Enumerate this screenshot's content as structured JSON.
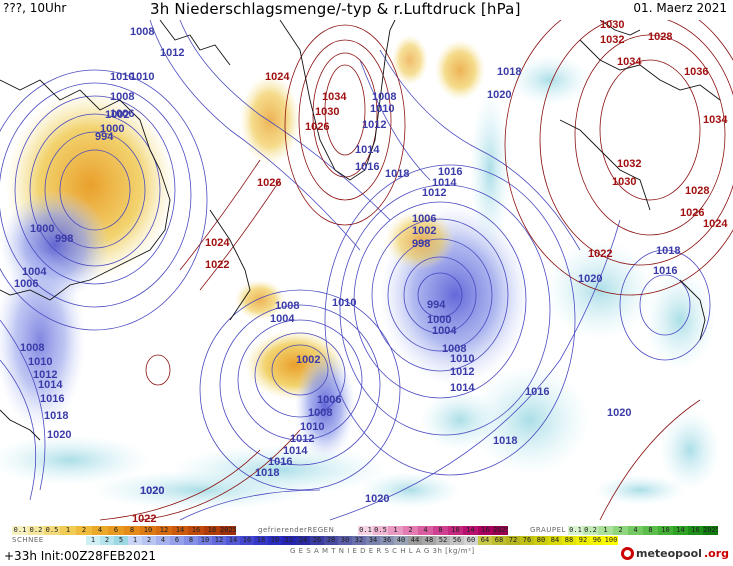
{
  "header": {
    "left_label": "???, 10Uhr",
    "title": "3h Niederschlagsmenge/-typ & r.Luftdruck [hPa]",
    "date": "01. Maerz 2021"
  },
  "map": {
    "pressure_labels": [
      {
        "v": "1008",
        "c": "lo"
      },
      {
        "v": "1010",
        "c": "lo"
      },
      {
        "v": "1012",
        "c": "lo"
      },
      {
        "v": "1010",
        "c": "lo"
      },
      {
        "v": "1008",
        "c": "lo"
      },
      {
        "v": "1006",
        "c": "lo"
      },
      {
        "v": "1002",
        "c": "lo"
      },
      {
        "v": "1000",
        "c": "lo"
      },
      {
        "v": "994",
        "c": "lo"
      },
      {
        "v": "998",
        "c": "lo"
      },
      {
        "v": "1000",
        "c": "lo"
      },
      {
        "v": "1004",
        "c": "lo"
      },
      {
        "v": "1006",
        "c": "lo"
      },
      {
        "v": "1024",
        "c": "hi"
      },
      {
        "v": "1034",
        "c": "hi"
      },
      {
        "v": "1030",
        "c": "hi"
      },
      {
        "v": "1026",
        "c": "hi"
      },
      {
        "v": "1008",
        "c": "lo"
      },
      {
        "v": "1010",
        "c": "lo"
      },
      {
        "v": "1012",
        "c": "lo"
      },
      {
        "v": "1014",
        "c": "lo"
      },
      {
        "v": "1016",
        "c": "lo"
      },
      {
        "v": "1018",
        "c": "lo"
      },
      {
        "v": "1020",
        "c": "lo"
      },
      {
        "v": "1018",
        "c": "lo"
      },
      {
        "v": "1026",
        "c": "hi"
      },
      {
        "v": "1024",
        "c": "hi"
      },
      {
        "v": "1022",
        "c": "hi"
      },
      {
        "v": "1030",
        "c": "hi"
      },
      {
        "v": "1032",
        "c": "hi"
      },
      {
        "v": "1028",
        "c": "hi"
      },
      {
        "v": "1034",
        "c": "hi"
      },
      {
        "v": "1036",
        "c": "hi"
      },
      {
        "v": "1034",
        "c": "hi"
      },
      {
        "v": "1032",
        "c": "hi"
      },
      {
        "v": "1030",
        "c": "hi"
      },
      {
        "v": "1028",
        "c": "hi"
      },
      {
        "v": "1026",
        "c": "hi"
      },
      {
        "v": "1024",
        "c": "hi"
      },
      {
        "v": "1016",
        "c": "lo"
      },
      {
        "v": "1014",
        "c": "lo"
      },
      {
        "v": "1012",
        "c": "lo"
      },
      {
        "v": "1006",
        "c": "lo"
      },
      {
        "v": "1002",
        "c": "lo"
      },
      {
        "v": "998",
        "c": "lo"
      },
      {
        "v": "994",
        "c": "lo"
      },
      {
        "v": "1000",
        "c": "lo"
      },
      {
        "v": "1004",
        "c": "lo"
      },
      {
        "v": "1008",
        "c": "lo"
      },
      {
        "v": "1010",
        "c": "lo"
      },
      {
        "v": "1012",
        "c": "lo"
      },
      {
        "v": "1014",
        "c": "lo"
      },
      {
        "v": "1016",
        "c": "lo"
      },
      {
        "v": "1018",
        "c": "lo"
      },
      {
        "v": "1020",
        "c": "lo"
      },
      {
        "v": "1022",
        "c": "hi"
      },
      {
        "v": "1020",
        "c": "lo"
      },
      {
        "v": "1018",
        "c": "lo"
      },
      {
        "v": "1016",
        "c": "lo"
      },
      {
        "v": "1010",
        "c": "lo"
      },
      {
        "v": "1008",
        "c": "lo"
      },
      {
        "v": "1004",
        "c": "lo"
      },
      {
        "v": "1002",
        "c": "lo"
      },
      {
        "v": "1006",
        "c": "lo"
      },
      {
        "v": "1008",
        "c": "lo"
      },
      {
        "v": "1010",
        "c": "lo"
      },
      {
        "v": "1012",
        "c": "lo"
      },
      {
        "v": "1014",
        "c": "lo"
      },
      {
        "v": "1016",
        "c": "lo"
      },
      {
        "v": "1018",
        "c": "lo"
      },
      {
        "v": "1020",
        "c": "lo"
      },
      {
        "v": "1008",
        "c": "lo"
      },
      {
        "v": "1010",
        "c": "lo"
      },
      {
        "v": "1012",
        "c": "lo"
      },
      {
        "v": "1014",
        "c": "lo"
      },
      {
        "v": "1016",
        "c": "lo"
      },
      {
        "v": "1018",
        "c": "lo"
      },
      {
        "v": "1020",
        "c": "lo"
      },
      {
        "v": "1022",
        "c": "hi"
      },
      {
        "v": "1020",
        "c": "lo"
      },
      {
        "v": "1020",
        "c": "lo"
      }
    ]
  },
  "legend": {
    "snow_label": "SCHNEE",
    "freezing_rain_label": "gefrierenderREGEN",
    "graupel_label": "GRAUPEL",
    "total_label": "G E S A M T N I E D E R S C H L A G  3h  [kg/m²]",
    "yellow_scale": [
      "0.1",
      "0.2",
      "0.5",
      "1",
      "2",
      "4",
      "6",
      "8",
      "10",
      "12",
      "14",
      "16",
      "18",
      "2025+"
    ],
    "frz_scale": [
      "0.1",
      "0.5",
      "1",
      "2",
      "4",
      "8",
      "10",
      "14",
      "16",
      "2025+"
    ],
    "graupel_scale": [
      "0.1",
      "0.2",
      "1",
      "2",
      "4",
      "8",
      "10",
      "14",
      "16",
      "2025+"
    ],
    "snow_scale": [
      "1",
      "2",
      "5",
      "1",
      "2",
      "4",
      "6",
      "8",
      "10",
      "12",
      "14",
      "16",
      "18",
      "20",
      "22",
      "24",
      "26",
      "28",
      "30",
      "32",
      "34",
      "36",
      "40",
      "44",
      "48",
      "52",
      "56",
      "60",
      "64",
      "68",
      "72",
      "76",
      "80",
      "84",
      "88",
      "92",
      "96",
      "100"
    ],
    "colors": {
      "yellow": [
        "#f7f0c0",
        "#f5e7a0",
        "#f3da7a",
        "#f0cb55",
        "#eebb3c",
        "#eba92a",
        "#e89a20",
        "#e48a18",
        "#de7a14",
        "#d66a10",
        "#cc5a0e",
        "#c04a0c",
        "#b03c0a",
        "#a0300a"
      ],
      "frz": [
        "#f6d3e4",
        "#f0b8d4",
        "#e99ac3",
        "#e27cb2",
        "#d95ea1",
        "#cf4090",
        "#c4287f",
        "#b8106e",
        "#a8005e",
        "#980050"
      ],
      "graupel": [
        "#d9f2d0",
        "#c2eab5",
        "#aae09a",
        "#8fd57e",
        "#74c962",
        "#5cbd4a",
        "#44b035",
        "#2fa125",
        "#1e8f18",
        "#0f7d0e"
      ],
      "snow": [
        "#cfeff5",
        "#b6e4ec",
        "#9cd8e3",
        "#c9d4f6",
        "#b8c4f2",
        "#a6b2ee",
        "#94a0ea",
        "#838ee5",
        "#727ce0",
        "#626adb",
        "#5258d5",
        "#4347cf",
        "#3537c8",
        "#2a2bbf",
        "#2424b0",
        "#2a2aa0",
        "#3a3ba0",
        "#4a4ca4",
        "#5a5ea8",
        "#6a70ac",
        "#7a82b0",
        "#8a92b4",
        "#9aa2b8",
        "#9a9a9a",
        "#a6a6a6",
        "#b5b5b5",
        "#c4c4c4",
        "#d3d3d3",
        "#c8c84a",
        "#bdbd30",
        "#b5b520",
        "#c0c015",
        "#cccc10",
        "#d8d80a",
        "#e4e406",
        "#eeee03",
        "#f7f701",
        "#ffff00"
      ]
    }
  },
  "footer": {
    "init_label": "+33h  Init:00Z28FEB2021",
    "brand_name": "meteopool",
    "brand_tld": ".org"
  }
}
